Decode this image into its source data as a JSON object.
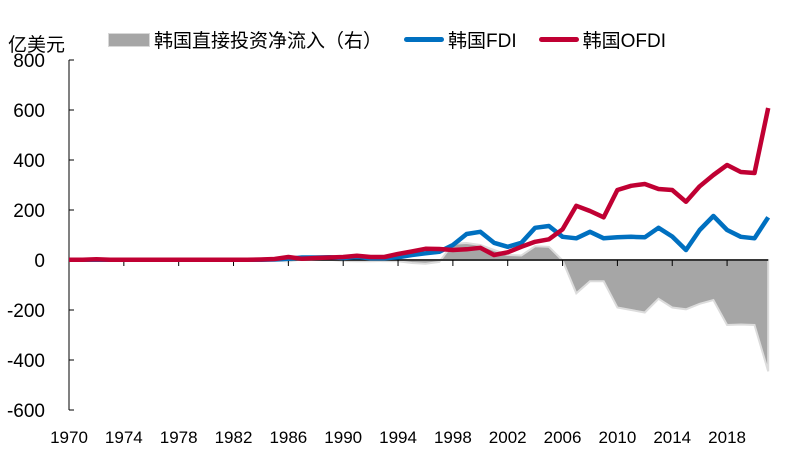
{
  "chart_data": {
    "type": "line",
    "yunit": "亿美元",
    "ylim": [
      -600,
      800
    ],
    "yticks": [
      800,
      600,
      400,
      200,
      0,
      -200,
      -400,
      -600
    ],
    "xticks": [
      1970,
      1974,
      1978,
      1982,
      1986,
      1990,
      1994,
      1998,
      2002,
      2006,
      2010,
      2014,
      2018
    ],
    "legend_position": "top",
    "grid": false,
    "x": [
      1970,
      1971,
      1972,
      1973,
      1974,
      1975,
      1976,
      1977,
      1978,
      1979,
      1980,
      1981,
      1982,
      1983,
      1984,
      1985,
      1986,
      1987,
      1988,
      1989,
      1990,
      1991,
      1992,
      1993,
      1994,
      1995,
      1996,
      1997,
      1998,
      1999,
      2000,
      2001,
      2002,
      2003,
      2004,
      2005,
      2006,
      2007,
      2008,
      2009,
      2010,
      2011,
      2012,
      2013,
      2014,
      2015,
      2016,
      2017,
      2018,
      2019,
      2020,
      2021
    ],
    "series": [
      {
        "name": "韩国直接投资净流入（右）",
        "kind": "area",
        "color": "#a6a6a6",
        "values": [
          0,
          0,
          2,
          0,
          0,
          0,
          0,
          0,
          0,
          0,
          0,
          0,
          0,
          0,
          -1,
          -2,
          -6,
          3,
          2,
          1,
          -4,
          -5,
          -5,
          -4,
          -5,
          -12,
          -15,
          -8,
          65,
          68,
          60,
          40,
          20,
          18,
          55,
          53,
          -2,
          -133,
          -85,
          -85,
          -190,
          -200,
          -210,
          -155,
          -190,
          -197,
          -175,
          -160,
          -260,
          -258,
          -260,
          -445
        ]
      },
      {
        "name": "韩国FDI",
        "kind": "line",
        "color": "#0070c0",
        "values": [
          1,
          1,
          1,
          1,
          1,
          1,
          1,
          1,
          1,
          1,
          1,
          1,
          1,
          1,
          1,
          2,
          5,
          10,
          10,
          11,
          8,
          12,
          7,
          7,
          11,
          20,
          27,
          33,
          60,
          104,
          113,
          69,
          53,
          69,
          129,
          136,
          93,
          87,
          113,
          87,
          91,
          93,
          91,
          129,
          94,
          40,
          120,
          176,
          120,
          93,
          87,
          171
        ]
      },
      {
        "name": "韩国OFDI",
        "kind": "line",
        "color": "#c00033",
        "values": [
          1,
          1,
          3,
          1,
          1,
          1,
          1,
          1,
          1,
          1,
          1,
          1,
          1,
          1,
          2,
          4,
          12,
          5,
          8,
          10,
          12,
          17,
          12,
          12,
          24,
          34,
          45,
          44,
          40,
          43,
          49,
          20,
          31,
          53,
          73,
          83,
          123,
          217,
          196,
          171,
          280,
          297,
          304,
          284,
          280,
          233,
          295,
          340,
          380,
          352,
          348,
          608
        ]
      }
    ]
  }
}
